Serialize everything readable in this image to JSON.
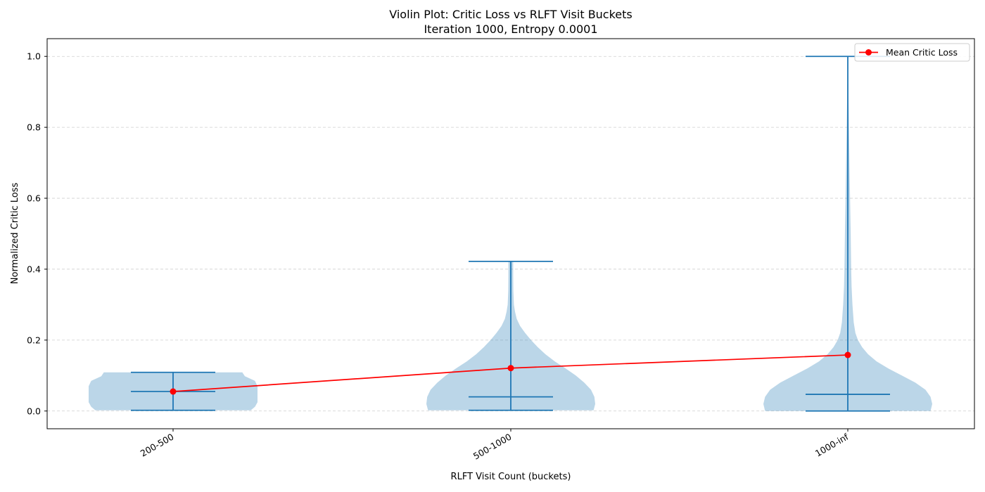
{
  "chart_data": {
    "type": "violin",
    "title": "Violin Plot: Critic Loss vs RLFT Visit Buckets",
    "subtitle": "Iteration 1000, Entropy 0.0001",
    "xlabel": "RLFT Visit Count (buckets)",
    "ylabel": "Normalized Critic Loss",
    "categories": [
      "200-500",
      "500-1000",
      "1000-inf"
    ],
    "ylim": [
      -0.05,
      1.05
    ],
    "yticks": [
      0.0,
      0.2,
      0.4,
      0.6,
      0.8,
      1.0
    ],
    "ytick_labels": [
      "0.0",
      "0.2",
      "0.4",
      "0.6",
      "0.8",
      "1.0"
    ],
    "grid": "y-dashed",
    "legend_position": "top-right",
    "violin_color": "#1f77b4",
    "violins": [
      {
        "category": "200-500",
        "min": 0.002,
        "median": 0.055,
        "max": 0.109,
        "profile": [
          [
            0.002,
            0.92
          ],
          [
            0.012,
            0.97
          ],
          [
            0.025,
            1.0
          ],
          [
            0.04,
            1.0
          ],
          [
            0.055,
            1.0
          ],
          [
            0.07,
            1.0
          ],
          [
            0.085,
            0.97
          ],
          [
            0.098,
            0.85
          ],
          [
            0.109,
            0.82
          ]
        ]
      },
      {
        "category": "500-1000",
        "min": 0.002,
        "median": 0.04,
        "max": 0.422,
        "profile": [
          [
            0.002,
            0.98
          ],
          [
            0.02,
            1.0
          ],
          [
            0.04,
            0.99
          ],
          [
            0.06,
            0.95
          ],
          [
            0.08,
            0.87
          ],
          [
            0.1,
            0.77
          ],
          [
            0.12,
            0.65
          ],
          [
            0.14,
            0.52
          ],
          [
            0.16,
            0.41
          ],
          [
            0.18,
            0.32
          ],
          [
            0.2,
            0.24
          ],
          [
            0.22,
            0.17
          ],
          [
            0.24,
            0.11
          ],
          [
            0.26,
            0.07
          ],
          [
            0.28,
            0.05
          ],
          [
            0.3,
            0.037
          ],
          [
            0.34,
            0.03
          ],
          [
            0.38,
            0.028
          ],
          [
            0.422,
            0.028
          ]
        ]
      },
      {
        "category": "1000-inf",
        "min": 0.0,
        "median": 0.047,
        "max": 1.0,
        "profile": [
          [
            0.0,
            0.98
          ],
          [
            0.02,
            1.0
          ],
          [
            0.04,
            0.98
          ],
          [
            0.06,
            0.92
          ],
          [
            0.08,
            0.8
          ],
          [
            0.1,
            0.64
          ],
          [
            0.12,
            0.48
          ],
          [
            0.14,
            0.34
          ],
          [
            0.16,
            0.24
          ],
          [
            0.18,
            0.17
          ],
          [
            0.2,
            0.12
          ],
          [
            0.22,
            0.09
          ],
          [
            0.25,
            0.07
          ],
          [
            0.3,
            0.055
          ],
          [
            0.35,
            0.045
          ],
          [
            0.4,
            0.04
          ],
          [
            0.5,
            0.034
          ],
          [
            0.6,
            0.027
          ],
          [
            0.7,
            0.02
          ],
          [
            0.8,
            0.013
          ],
          [
            0.9,
            0.007
          ],
          [
            1.0,
            0.002
          ]
        ]
      }
    ],
    "series": [
      {
        "name": "Mean Critic Loss",
        "color": "#ff0000",
        "values": [
          0.055,
          0.121,
          0.158
        ]
      }
    ]
  }
}
